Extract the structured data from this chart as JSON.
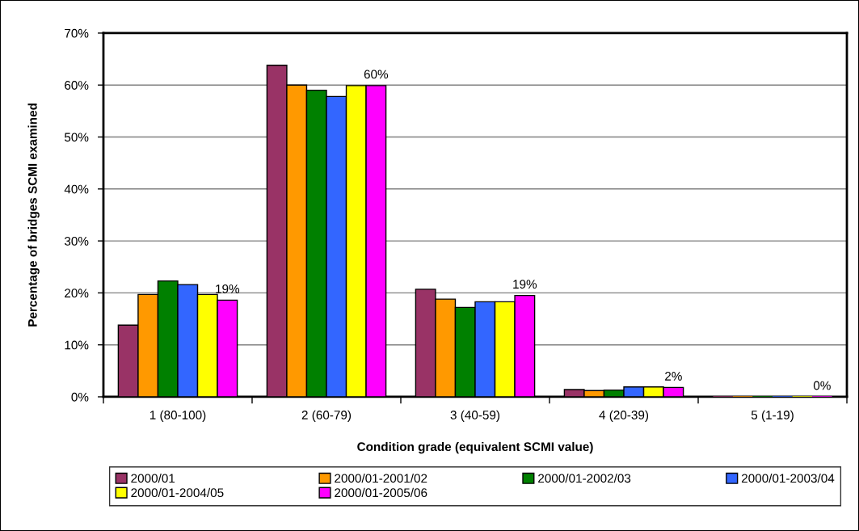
{
  "chart_data": {
    "type": "bar",
    "xlabel": "Condition grade (equivalent SCMI value)",
    "ylabel": "Percentage of bridges SCMI examined",
    "categories": [
      "1 (80-100)",
      "2 (60-79)",
      "3 (40-59)",
      "4 (20-39)",
      "5 (1-19)"
    ],
    "series": [
      {
        "name": "2000/01",
        "color": "#993366",
        "values": [
          13.8,
          63.8,
          20.7,
          1.4,
          0
        ]
      },
      {
        "name": "2000/01-2001/02",
        "color": "#ff9900",
        "values": [
          19.7,
          60.0,
          18.8,
          1.2,
          0
        ]
      },
      {
        "name": "2000/01-2002/03",
        "color": "#008000",
        "values": [
          22.3,
          59.0,
          17.2,
          1.3,
          0
        ]
      },
      {
        "name": "2000/01-2003/04",
        "color": "#3366ff",
        "values": [
          21.6,
          57.8,
          18.3,
          1.9,
          0
        ]
      },
      {
        "name": "2000/01-2004/05",
        "color": "#ffff00",
        "values": [
          19.7,
          59.9,
          18.3,
          1.9,
          0
        ]
      },
      {
        "name": "2000/01-2005/06",
        "color": "#ff00ff",
        "values": [
          18.6,
          59.9,
          19.5,
          1.8,
          0
        ],
        "value_labels": [
          "19%",
          "60%",
          "19%",
          "2%",
          "0%"
        ]
      }
    ],
    "ylim": [
      0,
      70
    ],
    "yticks": [
      {
        "value": 0,
        "label": "0%"
      },
      {
        "value": 10,
        "label": "10%"
      },
      {
        "value": 20,
        "label": "20%"
      },
      {
        "value": 30,
        "label": "30%"
      },
      {
        "value": 40,
        "label": "40%"
      },
      {
        "value": 50,
        "label": "50%"
      },
      {
        "value": 60,
        "label": "60%"
      },
      {
        "value": 70,
        "label": "70%"
      }
    ],
    "grid": "y",
    "legend": "bottom"
  }
}
